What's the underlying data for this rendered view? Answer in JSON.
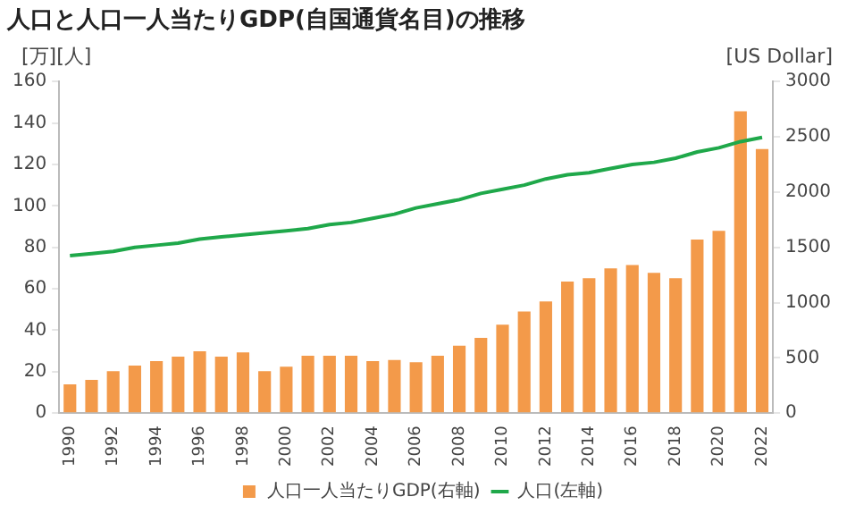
{
  "chart_data": {
    "type": "bar",
    "title": "人口と人口一人当たりGDP(自国通貨名目)の推移",
    "ylabel": "[万][人]",
    "y2label": "[US Dollar]",
    "categories": [
      "1990",
      null,
      "1992",
      null,
      "1994",
      null,
      "1996",
      null,
      "1998",
      null,
      "2000",
      null,
      "2002",
      null,
      "2004",
      null,
      "2006",
      null,
      "2008",
      null,
      "2010",
      null,
      "2012",
      null,
      "2014",
      null,
      "2016",
      null,
      "2018",
      null,
      "2020",
      null,
      "2022"
    ],
    "series": [
      {
        "name": "人口一人当たりGDP(右軸)",
        "axis": "y2",
        "color": "#f39a4a",
        "values": [
          260,
          300,
          380,
          430,
          470,
          510,
          560,
          510,
          550,
          380,
          420,
          520,
          520,
          520,
          470,
          480,
          460,
          520,
          610,
          680,
          800,
          920,
          1010,
          1190,
          1220,
          1310,
          1340,
          1270,
          1220,
          1570,
          1650,
          2730,
          2390
        ]
      },
      {
        "name": "人口(左軸)",
        "type": "line",
        "color": "#1fa84a",
        "values": [
          76,
          77,
          78,
          80,
          81,
          82,
          84,
          85,
          86,
          87,
          88,
          89,
          91,
          92,
          94,
          96,
          99,
          101,
          103,
          106,
          108,
          110,
          113,
          115,
          116,
          118,
          120,
          121,
          123,
          126,
          128,
          131,
          133
        ]
      }
    ],
    "ylim": [
      0,
      160
    ],
    "yticks": [
      0,
      20,
      40,
      60,
      80,
      100,
      120,
      140,
      160
    ],
    "y2lim": [
      0,
      3000
    ],
    "y2ticks": [
      0,
      500,
      1000,
      1500,
      2000,
      2500,
      3000
    ],
    "grid": false,
    "legend": "bottom",
    "marker": "none"
  }
}
